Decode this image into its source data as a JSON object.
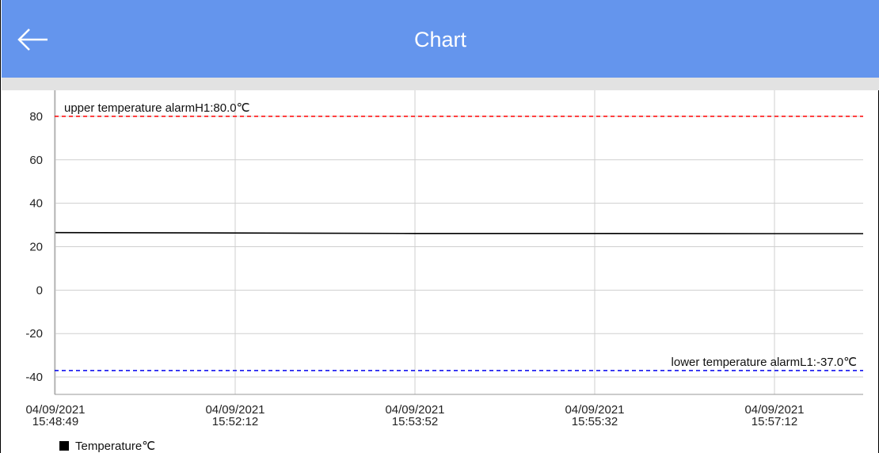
{
  "header": {
    "title": "Chart",
    "back_icon": "back-arrow-icon",
    "background": "#6495ed"
  },
  "chart_data": {
    "type": "line",
    "ylim": [
      -48,
      92
    ],
    "y_ticks": [
      80,
      60,
      40,
      20,
      0,
      -20,
      -40
    ],
    "x_tick_labels": [
      [
        "04/09/2021",
        "15:48:49"
      ],
      [
        "04/09/2021",
        "15:52:12"
      ],
      [
        "04/09/2021",
        "15:53:52"
      ],
      [
        "04/09/2021",
        "15:55:32"
      ],
      [
        "04/09/2021",
        "15:57:12"
      ]
    ],
    "grid": true,
    "series": [
      {
        "name": "Temperature℃",
        "color": "#000000",
        "x": [
          0,
          1,
          2,
          3,
          4,
          4.5
        ],
        "values": [
          26.5,
          26.3,
          26.1,
          26.1,
          26.0,
          26.0
        ]
      }
    ],
    "limit_lines": [
      {
        "label": "upper temperature alarmH1:80.0℃",
        "value": 80.0,
        "color": "#ff0000",
        "label_position": "left"
      },
      {
        "label": "lower temperature alarmL1:-37.0℃",
        "value": -37.0,
        "color": "#0000ee",
        "label_position": "right"
      }
    ],
    "legend": {
      "position": "bottom-left"
    }
  }
}
